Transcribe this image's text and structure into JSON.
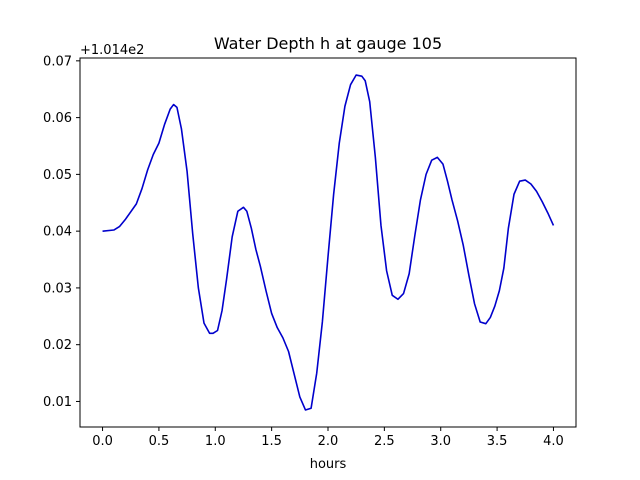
{
  "chart_data": {
    "type": "line",
    "title": "Water Depth h at gauge 105",
    "xlabel": "hours",
    "ylabel": "",
    "offset_label": "+1.014e2",
    "y_offset": 101.4,
    "xlim": [
      -0.2,
      4.2
    ],
    "ylim": [
      0.0055,
      0.0705
    ],
    "x_ticks": [
      0.0,
      0.5,
      1.0,
      1.5,
      2.0,
      2.5,
      3.0,
      3.5,
      4.0
    ],
    "x_tick_labels": [
      "0.0",
      "0.5",
      "1.0",
      "1.5",
      "2.0",
      "2.5",
      "3.0",
      "3.5",
      "4.0"
    ],
    "y_ticks": [
      0.01,
      0.02,
      0.03,
      0.04,
      0.05,
      0.06,
      0.07
    ],
    "y_tick_labels": [
      "0.01",
      "0.02",
      "0.03",
      "0.04",
      "0.05",
      "0.06",
      "0.07"
    ],
    "grid": false,
    "legend": "none",
    "series": [
      {
        "color": "#0000cc",
        "x": [
          0.0,
          0.1,
          0.15,
          0.2,
          0.3,
          0.35,
          0.4,
          0.45,
          0.5,
          0.55,
          0.6,
          0.63,
          0.66,
          0.7,
          0.75,
          0.8,
          0.85,
          0.9,
          0.95,
          0.98,
          1.02,
          1.06,
          1.1,
          1.15,
          1.2,
          1.25,
          1.28,
          1.32,
          1.36,
          1.4,
          1.45,
          1.5,
          1.55,
          1.6,
          1.65,
          1.7,
          1.75,
          1.8,
          1.85,
          1.9,
          1.95,
          2.0,
          2.05,
          2.1,
          2.15,
          2.2,
          2.25,
          2.3,
          2.33,
          2.37,
          2.42,
          2.47,
          2.52,
          2.57,
          2.62,
          2.67,
          2.72,
          2.77,
          2.82,
          2.87,
          2.92,
          2.97,
          3.02,
          3.06,
          3.1,
          3.15,
          3.2,
          3.25,
          3.3,
          3.35,
          3.4,
          3.44,
          3.48,
          3.52,
          3.56,
          3.6,
          3.65,
          3.7,
          3.75,
          3.8,
          3.85,
          3.9,
          3.95,
          4.0
        ],
        "y": [
          0.04,
          0.0402,
          0.0408,
          0.042,
          0.0448,
          0.0475,
          0.0508,
          0.0535,
          0.0555,
          0.0588,
          0.0615,
          0.0623,
          0.0618,
          0.058,
          0.0505,
          0.0395,
          0.03,
          0.0238,
          0.022,
          0.022,
          0.0225,
          0.026,
          0.0315,
          0.039,
          0.0435,
          0.0442,
          0.0435,
          0.0405,
          0.0368,
          0.0338,
          0.0295,
          0.0255,
          0.023,
          0.0212,
          0.0188,
          0.0148,
          0.0108,
          0.0085,
          0.0088,
          0.015,
          0.024,
          0.0355,
          0.0465,
          0.0555,
          0.062,
          0.0658,
          0.0675,
          0.0673,
          0.0665,
          0.0628,
          0.053,
          0.041,
          0.033,
          0.0287,
          0.028,
          0.029,
          0.0325,
          0.0392,
          0.0455,
          0.05,
          0.0525,
          0.053,
          0.0518,
          0.0488,
          0.0455,
          0.0418,
          0.0375,
          0.0322,
          0.0272,
          0.024,
          0.0237,
          0.0248,
          0.0268,
          0.0295,
          0.0335,
          0.0405,
          0.0465,
          0.0488,
          0.049,
          0.0483,
          0.047,
          0.0452,
          0.0432,
          0.041
        ]
      }
    ]
  }
}
